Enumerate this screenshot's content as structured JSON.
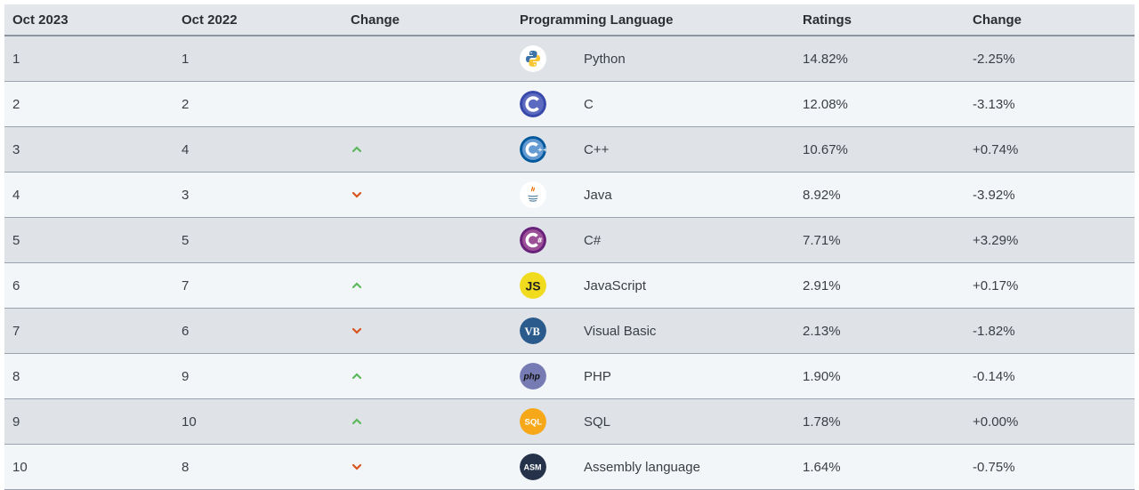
{
  "header": {
    "col1": "Oct 2023",
    "col2": "Oct 2022",
    "col3": "Change",
    "col4": "Programming Language",
    "col5": "Ratings",
    "col6": "Change"
  },
  "colors": {
    "up": "#5cb85c",
    "down": "#d9531e"
  },
  "rows": [
    {
      "rank": "1",
      "prev": "1",
      "trend": "none",
      "icon": "python-logo-icon",
      "language": "Python",
      "rating": "14.82%",
      "change": "-2.25%"
    },
    {
      "rank": "2",
      "prev": "2",
      "trend": "none",
      "icon": "c-logo-icon",
      "language": "C",
      "rating": "12.08%",
      "change": "-3.13%"
    },
    {
      "rank": "3",
      "prev": "4",
      "trend": "up",
      "icon": "cpp-logo-icon",
      "language": "C++",
      "rating": "10.67%",
      "change": "+0.74%"
    },
    {
      "rank": "4",
      "prev": "3",
      "trend": "down",
      "icon": "java-logo-icon",
      "language": "Java",
      "rating": "8.92%",
      "change": "-3.92%"
    },
    {
      "rank": "5",
      "prev": "5",
      "trend": "none",
      "icon": "csharp-logo-icon",
      "language": "C#",
      "rating": "7.71%",
      "change": "+3.29%"
    },
    {
      "rank": "6",
      "prev": "7",
      "trend": "up",
      "icon": "javascript-logo-icon",
      "language": "JavaScript",
      "rating": "2.91%",
      "change": "+0.17%"
    },
    {
      "rank": "7",
      "prev": "6",
      "trend": "down",
      "icon": "visual-basic-logo-icon",
      "language": "Visual Basic",
      "rating": "2.13%",
      "change": "-1.82%"
    },
    {
      "rank": "8",
      "prev": "9",
      "trend": "up",
      "icon": "php-logo-icon",
      "language": "PHP",
      "rating": "1.90%",
      "change": "-0.14%"
    },
    {
      "rank": "9",
      "prev": "10",
      "trend": "up",
      "icon": "sql-logo-icon",
      "language": "SQL",
      "rating": "1.78%",
      "change": "+0.00%"
    },
    {
      "rank": "10",
      "prev": "8",
      "trend": "down",
      "icon": "assembly-logo-icon",
      "language": "Assembly language",
      "rating": "1.64%",
      "change": "-0.75%"
    }
  ]
}
